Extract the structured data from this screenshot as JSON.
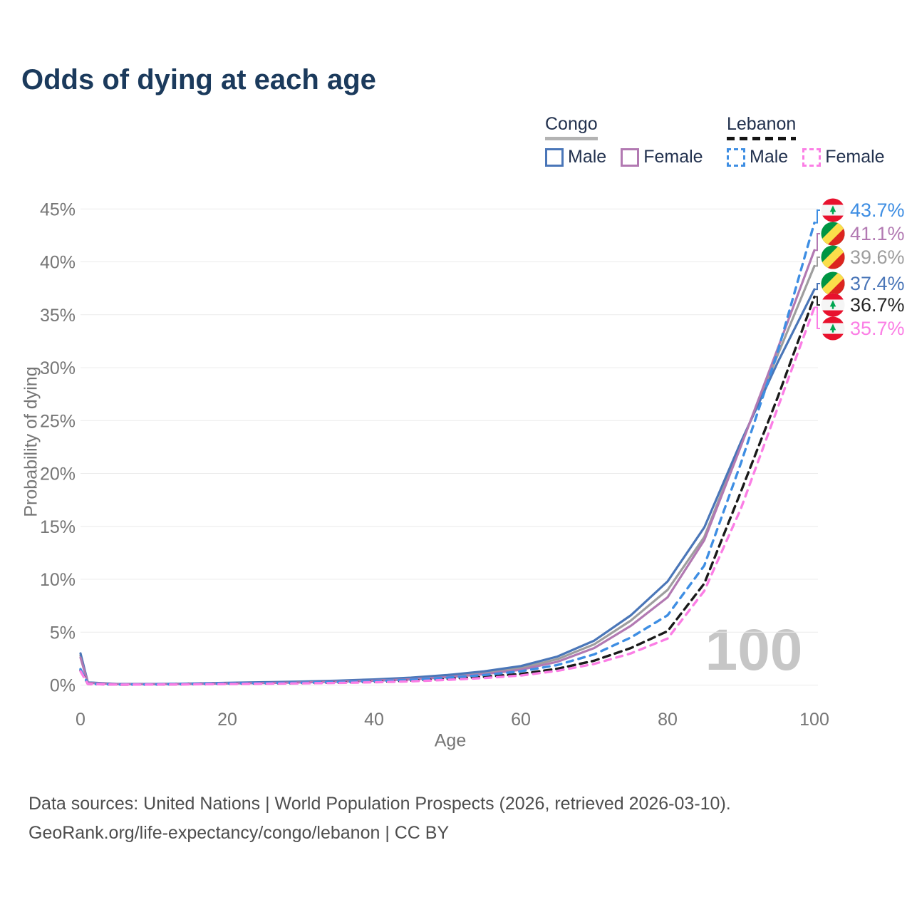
{
  "title": "Odds of dying at each age",
  "legend": {
    "groups": [
      {
        "id": "congo",
        "label": "Congo",
        "underline_style": "solid",
        "underline_color": "#b3b3b3",
        "items": [
          {
            "label": "Male",
            "color": "#4a76b8",
            "dashed": false
          },
          {
            "label": "Female",
            "color": "#b279b2",
            "dashed": false
          }
        ]
      },
      {
        "id": "lebanon",
        "label": "Lebanon",
        "underline_style": "dashed",
        "underline_color": "#141414",
        "items": [
          {
            "label": "Male",
            "color": "#3e8ee3",
            "dashed": true
          },
          {
            "label": "Female",
            "color": "#fb7ee5",
            "dashed": true
          }
        ]
      }
    ]
  },
  "chart_data": {
    "type": "line",
    "title": "Odds of dying at each age",
    "xlabel": "Age",
    "ylabel": "Probability of dying",
    "xlim": [
      0,
      100
    ],
    "ylim": [
      0,
      45
    ],
    "grid": "horizontal",
    "legend_position": "top-right",
    "watermark": "100",
    "x_ticks": [
      0,
      20,
      40,
      60,
      80,
      100
    ],
    "y_ticks": [
      "0%",
      "5%",
      "10%",
      "15%",
      "20%",
      "25%",
      "30%",
      "35%",
      "40%",
      "45%"
    ],
    "y_tick_values": [
      0,
      5,
      10,
      15,
      20,
      25,
      30,
      35,
      40,
      45
    ],
    "ages": [
      0,
      1,
      5,
      10,
      15,
      20,
      25,
      30,
      35,
      40,
      45,
      50,
      55,
      60,
      65,
      70,
      75,
      80,
      85,
      90,
      95,
      100
    ],
    "series": [
      {
        "id": "congo-both",
        "name": "Congo",
        "country": "Congo",
        "sex": "Both",
        "color": "#9e9e9e",
        "dash": null,
        "values": [
          2.8,
          0.23,
          0.09,
          0.09,
          0.12,
          0.18,
          0.23,
          0.29,
          0.37,
          0.47,
          0.62,
          0.85,
          1.15,
          1.6,
          2.45,
          3.85,
          6.1,
          9.0,
          14.0,
          22.8,
          31.2,
          39.6
        ],
        "end_value_label": "39.6%"
      },
      {
        "id": "congo-male",
        "name": "Congo Male",
        "country": "Congo",
        "sex": "Male",
        "color": "#4a76b8",
        "dash": null,
        "values": [
          3.0,
          0.25,
          0.1,
          0.1,
          0.14,
          0.21,
          0.27,
          0.33,
          0.42,
          0.53,
          0.7,
          0.95,
          1.3,
          1.8,
          2.7,
          4.2,
          6.6,
          9.8,
          14.9,
          23.0,
          30.5,
          37.4
        ],
        "end_value_label": "37.4%"
      },
      {
        "id": "congo-female",
        "name": "Congo Female",
        "country": "Congo",
        "sex": "Female",
        "color": "#b279b2",
        "dash": null,
        "values": [
          2.6,
          0.21,
          0.09,
          0.08,
          0.1,
          0.15,
          0.19,
          0.25,
          0.32,
          0.41,
          0.54,
          0.74,
          1.03,
          1.45,
          2.2,
          3.5,
          5.6,
          8.3,
          13.7,
          22.6,
          31.8,
          41.1
        ],
        "end_value_label": "41.1%"
      },
      {
        "id": "lebanon-both",
        "name": "Lebanon",
        "country": "Lebanon",
        "sex": "Both",
        "color": "#1a1a1a",
        "dash": "10 7",
        "values": [
          1.4,
          0.11,
          0.04,
          0.05,
          0.08,
          0.12,
          0.15,
          0.18,
          0.23,
          0.3,
          0.41,
          0.57,
          0.78,
          1.05,
          1.55,
          2.3,
          3.5,
          5.1,
          9.6,
          18.3,
          27.2,
          36.7
        ],
        "end_value_label": "36.7%"
      },
      {
        "id": "lebanon-male",
        "name": "Lebanon Male",
        "country": "Lebanon",
        "sex": "Male",
        "color": "#3e8ee3",
        "dash": "9 8",
        "values": [
          1.5,
          0.12,
          0.05,
          0.06,
          0.1,
          0.15,
          0.18,
          0.22,
          0.28,
          0.37,
          0.5,
          0.7,
          0.95,
          1.3,
          1.9,
          2.9,
          4.5,
          6.6,
          11.3,
          21.0,
          31.5,
          43.7
        ],
        "end_value_label": "43.7%"
      },
      {
        "id": "lebanon-female",
        "name": "Lebanon Female",
        "country": "Lebanon",
        "sex": "Female",
        "color": "#fb7ee5",
        "dash": "9 8",
        "values": [
          1.3,
          0.1,
          0.04,
          0.05,
          0.07,
          0.1,
          0.13,
          0.16,
          0.2,
          0.26,
          0.35,
          0.49,
          0.67,
          0.9,
          1.35,
          2.0,
          3.0,
          4.4,
          8.9,
          16.7,
          26.2,
          35.7
        ],
        "end_value_label": "35.7%"
      }
    ]
  },
  "end_labels": [
    {
      "text": "43.7%",
      "color": "#3e8ee3",
      "flag": "lebanon",
      "series": "lebanon-male"
    },
    {
      "text": "41.1%",
      "color": "#b279b2",
      "flag": "congo",
      "series": "congo-female"
    },
    {
      "text": "39.6%",
      "color": "#9e9e9e",
      "flag": "congo",
      "series": "congo-both"
    },
    {
      "text": "37.4%",
      "color": "#4a76b8",
      "flag": "congo",
      "series": "congo-male"
    },
    {
      "text": "36.7%",
      "color": "#262626",
      "flag": "lebanon",
      "series": "lebanon-both"
    },
    {
      "text": "35.7%",
      "color": "#fb7ee5",
      "flag": "lebanon",
      "series": "lebanon-female"
    }
  ],
  "flag_colors": {
    "congo": {
      "green": "#009543",
      "yellow": "#fbde4a",
      "red": "#dc241f"
    },
    "lebanon": {
      "red": "#e8112d",
      "white": "#f5f5f5",
      "cedar_green": "#00a651"
    }
  },
  "footer": {
    "line1": "Data sources: United Nations | World Population Prospects (2026, retrieved 2026-03-10).",
    "line2": "GeoRank.org/life-expectancy/congo/lebanon | CC BY"
  }
}
